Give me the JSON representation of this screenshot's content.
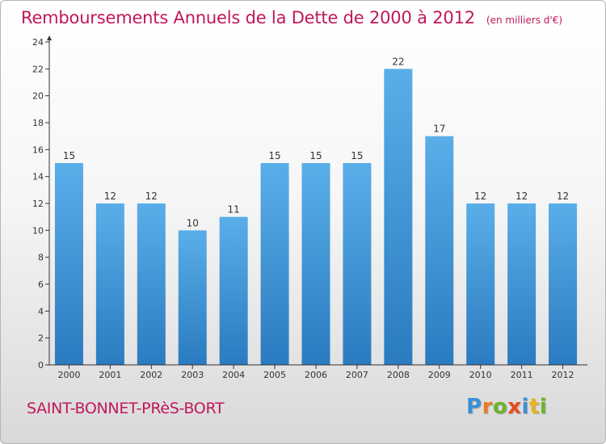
{
  "title": {
    "main": "Remboursements Annuels de la Dette de 2000 à 2012",
    "unit": "(en milliers d'€)"
  },
  "location": "SAINT-BONNET-PRèS-BORT",
  "logo": {
    "text": "Proxiti",
    "letters": [
      "P",
      "r",
      "o",
      "x",
      "i",
      "t",
      "i"
    ],
    "colors": [
      "#3a8fd6",
      "#e87d1e",
      "#6ab42d",
      "#e84c1e",
      "#3a8fd6",
      "#e8b31e",
      "#6ab42d"
    ]
  },
  "chart_data": {
    "type": "bar",
    "categories": [
      "2000",
      "2001",
      "2002",
      "2003",
      "2004",
      "2005",
      "2006",
      "2007",
      "2008",
      "2009",
      "2010",
      "2011",
      "2012"
    ],
    "values": [
      15,
      12,
      12,
      10,
      11,
      15,
      15,
      15,
      22,
      17,
      12,
      12,
      12
    ],
    "ylim": [
      0,
      24
    ],
    "yticks": [
      0,
      2,
      4,
      6,
      8,
      10,
      12,
      14,
      16,
      18,
      20,
      22,
      24
    ],
    "grid": false,
    "data_labels": true,
    "colors": {
      "bar_top": "#5aaee8",
      "bar_bottom": "#2a7bc0",
      "axis": "#333333",
      "label": "#333333"
    }
  }
}
